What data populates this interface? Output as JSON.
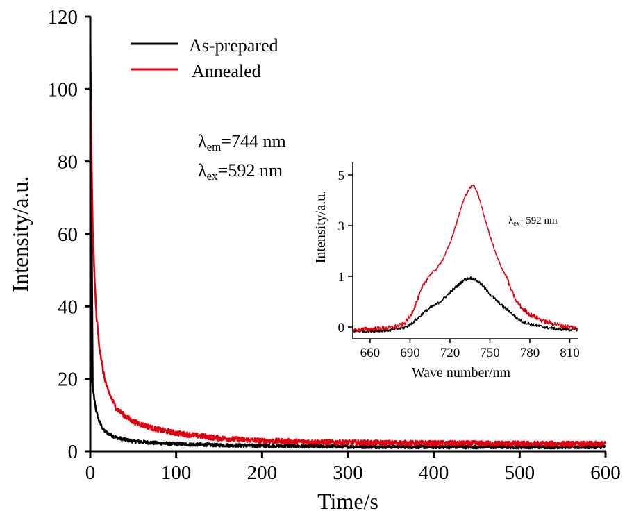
{
  "chart_data": [
    {
      "id": "main",
      "type": "line",
      "title": "",
      "xlabel": "Time/s",
      "ylabel": "Intensity/a.u.",
      "xlim": [
        0,
        600
      ],
      "ylim": [
        0,
        120
      ],
      "xticks": [
        0,
        100,
        200,
        300,
        400,
        500,
        600
      ],
      "xtick_labels": [
        "0",
        "100",
        "200",
        "300",
        "400",
        "500",
        "600"
      ],
      "yticks": [
        0,
        20,
        40,
        60,
        80,
        100,
        120
      ],
      "ytick_labels": [
        "0",
        "20",
        "40",
        "60",
        "80",
        "100",
        "120"
      ],
      "grid": false,
      "legend": {
        "placement": "top-left",
        "entries": [
          {
            "label": "As-prepared",
            "color": "#000000"
          },
          {
            "label": "Annealed",
            "color": "#e00010"
          }
        ]
      },
      "annotations": [
        {
          "symbol": "λ",
          "sub": "em",
          "text": "=744 nm"
        },
        {
          "symbol": "λ",
          "sub": "ex",
          "text": "=592 nm"
        }
      ],
      "series": [
        {
          "name": "As-prepared",
          "color": "#000000",
          "x": [
            0,
            1,
            2,
            3,
            5,
            7,
            10,
            15,
            20,
            30,
            40,
            50,
            75,
            100,
            150,
            200,
            300,
            400,
            500,
            600
          ],
          "y": [
            120,
            40,
            20,
            17,
            14,
            11,
            8.5,
            6,
            5,
            3.8,
            3.2,
            2.8,
            2.3,
            2.0,
            1.7,
            1.5,
            1.3,
            1.2,
            1.2,
            1.2
          ]
        },
        {
          "name": "Annealed",
          "color": "#e00010",
          "x": [
            0,
            1,
            2,
            3,
            5,
            7,
            10,
            15,
            20,
            30,
            40,
            50,
            75,
            100,
            150,
            200,
            300,
            400,
            500,
            600
          ],
          "y": [
            102.6,
            82,
            70,
            60,
            48,
            38,
            30,
            22,
            17,
            12,
            9.8,
            8.2,
            6.2,
            5.0,
            3.6,
            2.9,
            2.4,
            2.2,
            2.1,
            2.0
          ]
        }
      ]
    },
    {
      "id": "inset",
      "type": "line",
      "title": "",
      "xlabel": "Wave number/nm",
      "ylabel": "Intensity/a.u.",
      "xlim": [
        647,
        816
      ],
      "xticks": [
        660,
        690,
        720,
        750,
        780,
        810
      ],
      "xtick_labels": [
        "660",
        "690",
        "720",
        "750",
        "780",
        "810"
      ],
      "yticks": [
        0,
        1,
        3,
        5
      ],
      "ytick_labels": [
        "0",
        "1",
        "3",
        "5"
      ],
      "grid": false,
      "annotations": [
        {
          "symbol": "λ",
          "sub": "ex",
          "text": "=592 nm"
        }
      ],
      "series": [
        {
          "name": "As-prepared",
          "color": "#000000",
          "x": [
            647,
            660,
            675,
            685,
            690,
            695,
            700,
            705,
            710,
            715,
            720,
            725,
            730,
            735,
            738,
            742,
            745,
            750,
            755,
            760,
            765,
            770,
            775,
            780,
            790,
            800,
            810,
            816
          ],
          "y": [
            -0.08,
            -0.08,
            -0.06,
            -0.02,
            0.05,
            0.15,
            0.28,
            0.38,
            0.45,
            0.55,
            0.68,
            0.8,
            0.92,
            0.97,
            0.95,
            0.88,
            0.8,
            0.65,
            0.52,
            0.4,
            0.3,
            0.18,
            0.1,
            0.06,
            0.0,
            -0.04,
            -0.05,
            -0.05
          ]
        },
        {
          "name": "Annealed",
          "color": "#e00010",
          "x": [
            647,
            660,
            675,
            685,
            690,
            695,
            700,
            705,
            710,
            715,
            720,
            725,
            730,
            735,
            738,
            742,
            745,
            750,
            755,
            760,
            765,
            770,
            775,
            780,
            790,
            800,
            810,
            816
          ],
          "y": [
            -0.06,
            -0.04,
            -0.02,
            0.05,
            0.2,
            0.5,
            0.82,
            1.05,
            1.3,
            1.7,
            2.3,
            3.1,
            4.0,
            4.5,
            4.6,
            4.1,
            3.5,
            2.6,
            1.8,
            1.2,
            0.8,
            0.5,
            0.35,
            0.25,
            0.12,
            0.05,
            0.0,
            -0.03
          ]
        }
      ]
    }
  ]
}
